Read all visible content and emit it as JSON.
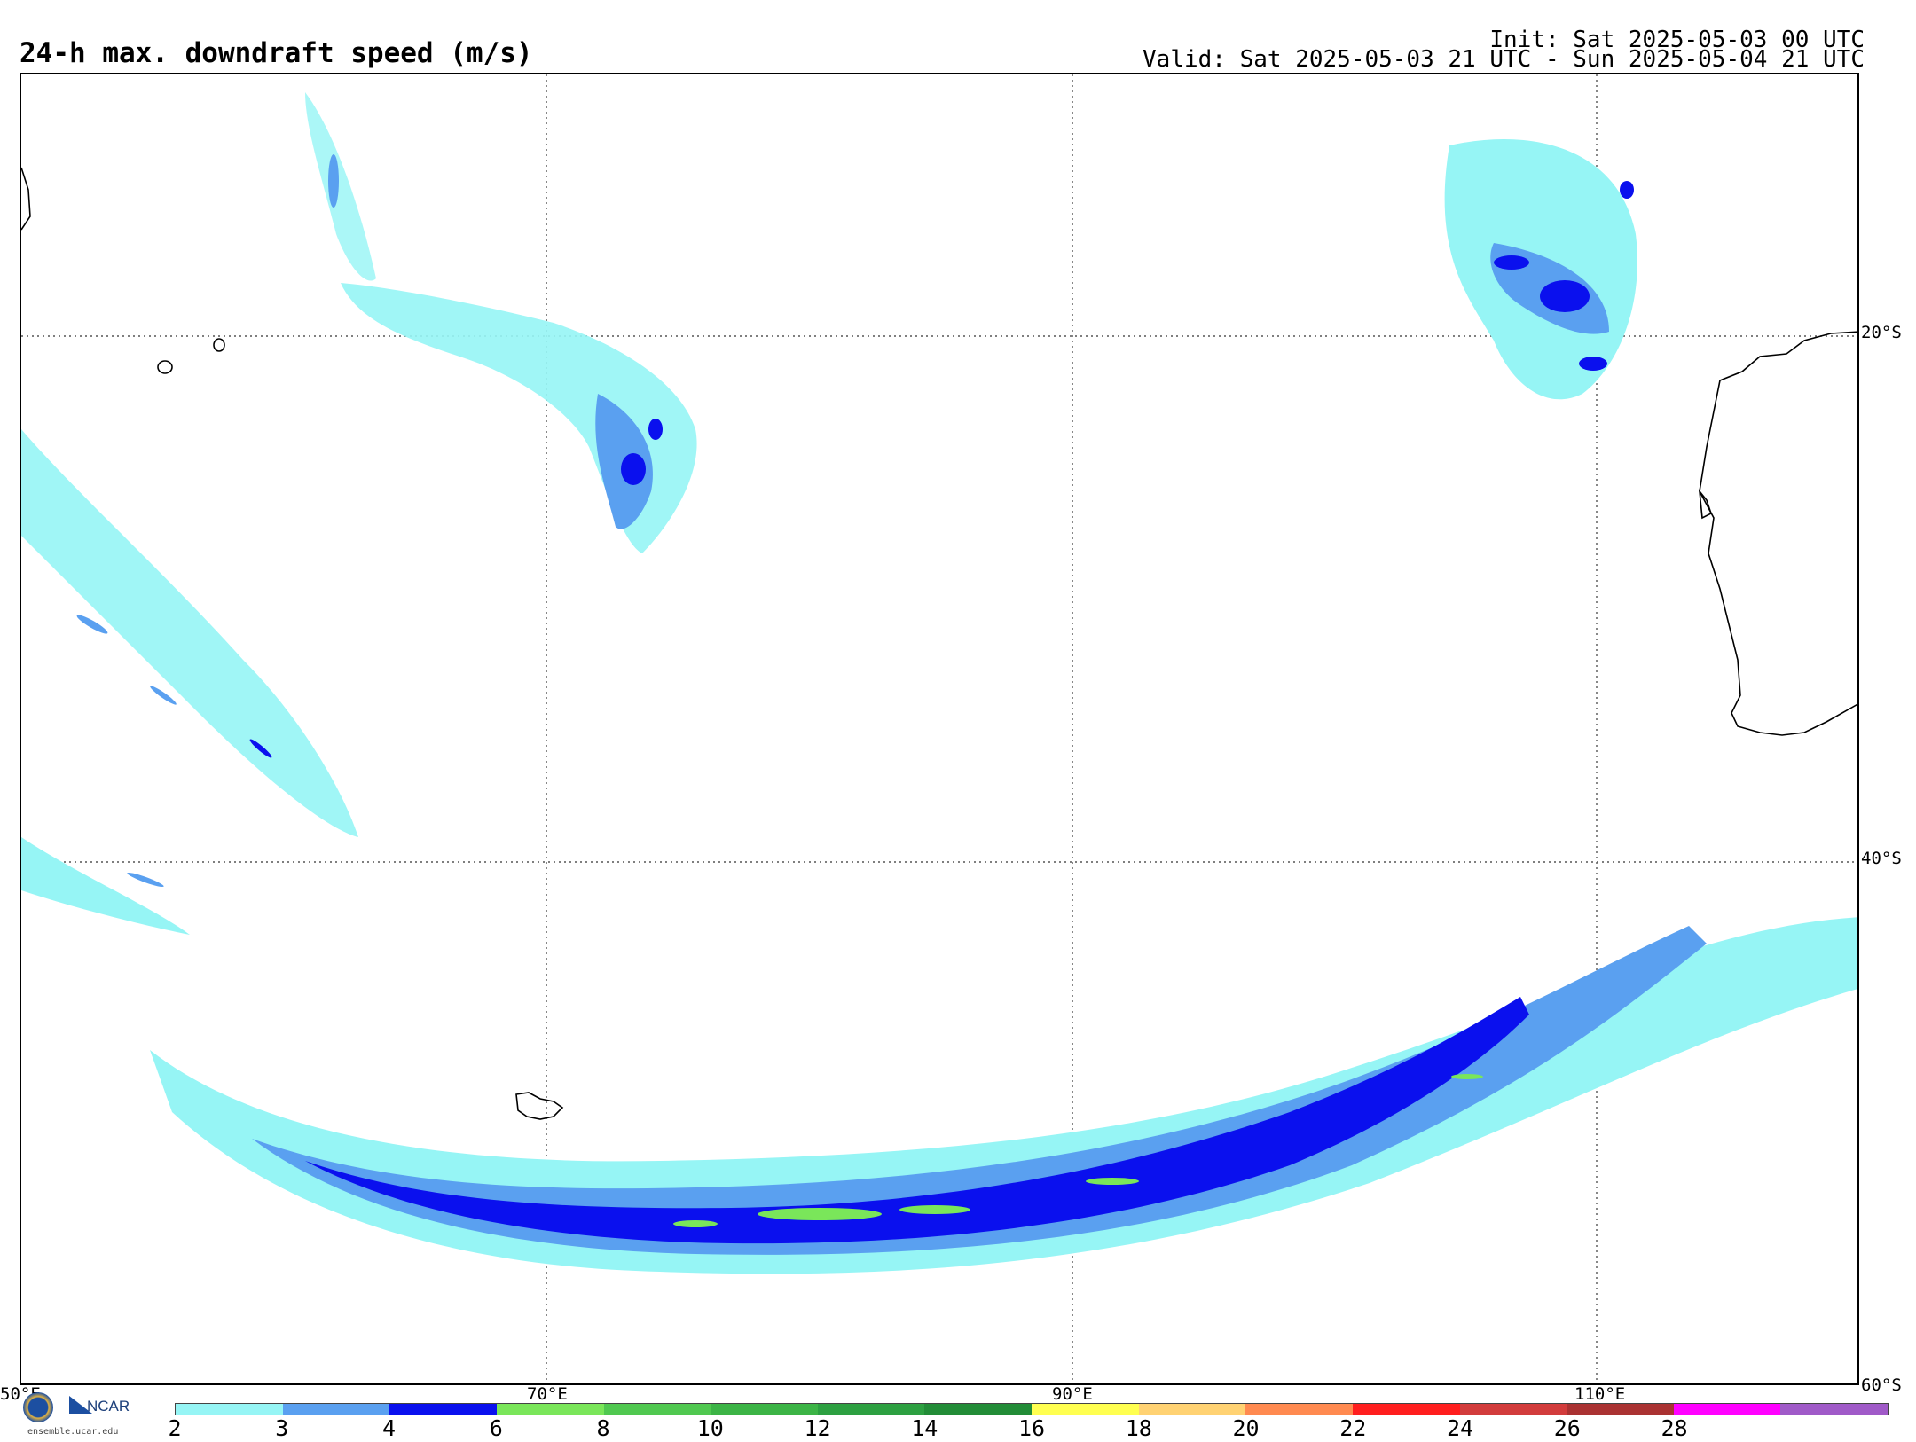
{
  "title": "24-h max. downdraft speed (m/s)",
  "init": "Init: Sat 2025-05-03 00 UTC",
  "valid": "Valid: Sat 2025-05-03 21 UTC - Sun 2025-05-04 21 UTC",
  "map": {
    "lon_labels": [
      "50°E",
      "70°E",
      "90°E",
      "110°E"
    ],
    "lat_labels": [
      "20°S",
      "40°S",
      "60°S"
    ]
  },
  "colorbar": {
    "ticks": [
      "2",
      "3",
      "4",
      "6",
      "8",
      "10",
      "12",
      "14",
      "16",
      "18",
      "20",
      "22",
      "24",
      "26",
      "28"
    ],
    "colors": [
      "#96f5f5",
      "#5aa0f0",
      "#0a10ee",
      "#7ae65a",
      "#50c850",
      "#3cb446",
      "#2da041",
      "#228c37",
      "#ffff50",
      "#ffd273",
      "#ff8a50",
      "#ff1e1e",
      "#d23c3c",
      "#aa3232",
      "#ff00ff",
      "#a05ac8"
    ]
  },
  "logos": {
    "ncar": "NCAR",
    "url": "ensemble.ucar.edu"
  },
  "icons": {
    "nsf": "nsf-logo-icon",
    "ncar": "ncar-logo-icon"
  }
}
